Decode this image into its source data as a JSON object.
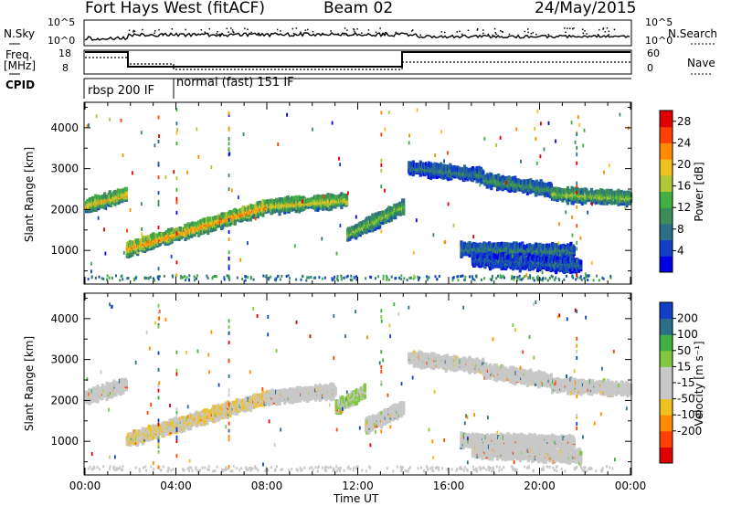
{
  "header": {
    "title": "Fort Hays West (fitACF)",
    "beam": "Beam 02",
    "date": "24/May/2015"
  },
  "top_strip": {
    "left_labels": [
      "N.Sky",
      "Freq.",
      "[MHz]",
      "CPID"
    ],
    "right_labels": [
      "N.Search",
      "Nave"
    ],
    "nsky_ticks": [
      "10^5",
      "10^0"
    ],
    "nsearch_ticks": [
      "10^5",
      "10^0"
    ],
    "freq_ticks": [
      "18",
      "8"
    ],
    "nave_ticks": [
      "60",
      "0"
    ],
    "cpid_segments": [
      {
        "label": "rbsp 200 IF",
        "start_h": 0.0,
        "end_h": 3.9
      },
      {
        "label": "normal (fast) 151 IF",
        "start_h": 3.9,
        "end_h": 24.0
      }
    ]
  },
  "chart_data": [
    {
      "type": "heatmap",
      "panel": "power",
      "xlabel": "Time UT",
      "ylabel": "Slant Range [km]",
      "x_ticks": [
        "00:00",
        "04:00",
        "08:00",
        "12:00",
        "16:00",
        "20:00",
        "00:00"
      ],
      "xlim": [
        0,
        24
      ],
      "y_ticks": [
        1000,
        2000,
        3000,
        4000
      ],
      "ylim": [
        200,
        4600
      ],
      "colorbar_label": "Power [dB]",
      "colorbar_ticks": [
        4,
        8,
        12,
        16,
        20,
        24,
        28
      ],
      "colorbar_range": [
        0,
        30
      ],
      "colors": [
        "#0000e6",
        "#1040c8",
        "#2a6e8a",
        "#3c8c5a",
        "#40b040",
        "#b0c838",
        "#f0c020",
        "#ff8c00",
        "#ff4000",
        "#e00000"
      ],
      "echo_bands": [
        {
          "start_h": 0.0,
          "end_h": 1.8,
          "range_km": [
            2150,
            2450
          ],
          "value": 18
        },
        {
          "start_h": 1.8,
          "end_h": 8.0,
          "range_km": [
            1100,
            2150
          ],
          "value": 20
        },
        {
          "start_h": 8.0,
          "end_h": 11.5,
          "range_km": [
            2150,
            2300
          ],
          "value": 17
        },
        {
          "start_h": 11.5,
          "end_h": 14.0,
          "range_km": [
            1450,
            2150
          ],
          "value": 14
        },
        {
          "start_h": 14.2,
          "end_h": 17.5,
          "range_km": [
            3100,
            2900
          ],
          "value": 8
        },
        {
          "start_h": 17.5,
          "end_h": 20.5,
          "range_km": [
            2800,
            2550
          ],
          "value": 10
        },
        {
          "start_h": 20.5,
          "end_h": 24.0,
          "range_km": [
            2450,
            2350
          ],
          "value": 14
        },
        {
          "start_h": 16.5,
          "end_h": 21.5,
          "range_km": [
            1100,
            1050
          ],
          "value": 8
        },
        {
          "start_h": 17.0,
          "end_h": 21.8,
          "range_km": [
            850,
            700
          ],
          "value": 6
        }
      ]
    },
    {
      "type": "heatmap",
      "panel": "velocity",
      "xlabel": "Time UT",
      "ylabel": "Slant Range [km]",
      "x_ticks": [
        "00:00",
        "04:00",
        "08:00",
        "12:00",
        "16:00",
        "20:00",
        "00:00"
      ],
      "xlim": [
        0,
        24
      ],
      "y_ticks": [
        1000,
        2000,
        3000,
        4000
      ],
      "ylim": [
        200,
        4600
      ],
      "colorbar_label": "Velocity [m s⁻¹]",
      "colorbar_ticks": [
        200,
        100,
        50,
        15,
        -15,
        -50,
        -100,
        -200
      ],
      "colorbar_range": [
        -250,
        250
      ],
      "colors": [
        "#e00000",
        "#ff4000",
        "#ff8c00",
        "#f0c020",
        "#c8c8c8",
        "#c8c8c8",
        "#80c840",
        "#40b040",
        "#2a6e8a",
        "#1040c8"
      ],
      "echo_bands": [
        {
          "start_h": 0.0,
          "end_h": 1.8,
          "range_km": [
            2150,
            2450
          ],
          "value": 0
        },
        {
          "start_h": 1.8,
          "end_h": 8.0,
          "range_km": [
            1100,
            2150
          ],
          "value": -40
        },
        {
          "start_h": 8.0,
          "end_h": 11.0,
          "range_km": [
            2150,
            2300
          ],
          "value": -10
        },
        {
          "start_h": 11.0,
          "end_h": 12.3,
          "range_km": [
            1900,
            2300
          ],
          "value": 60
        },
        {
          "start_h": 12.3,
          "end_h": 14.0,
          "range_km": [
            1450,
            1900
          ],
          "value": 0
        },
        {
          "start_h": 14.2,
          "end_h": 17.5,
          "range_km": [
            3100,
            2900
          ],
          "value": 0
        },
        {
          "start_h": 17.5,
          "end_h": 20.5,
          "range_km": [
            2800,
            2550
          ],
          "value": 0
        },
        {
          "start_h": 20.5,
          "end_h": 24.0,
          "range_km": [
            2450,
            2350
          ],
          "value": 0
        },
        {
          "start_h": 16.5,
          "end_h": 21.5,
          "range_km": [
            1100,
            1050
          ],
          "value": 0
        },
        {
          "start_h": 17.0,
          "end_h": 21.8,
          "range_km": [
            850,
            700
          ],
          "value": 0
        }
      ]
    }
  ]
}
